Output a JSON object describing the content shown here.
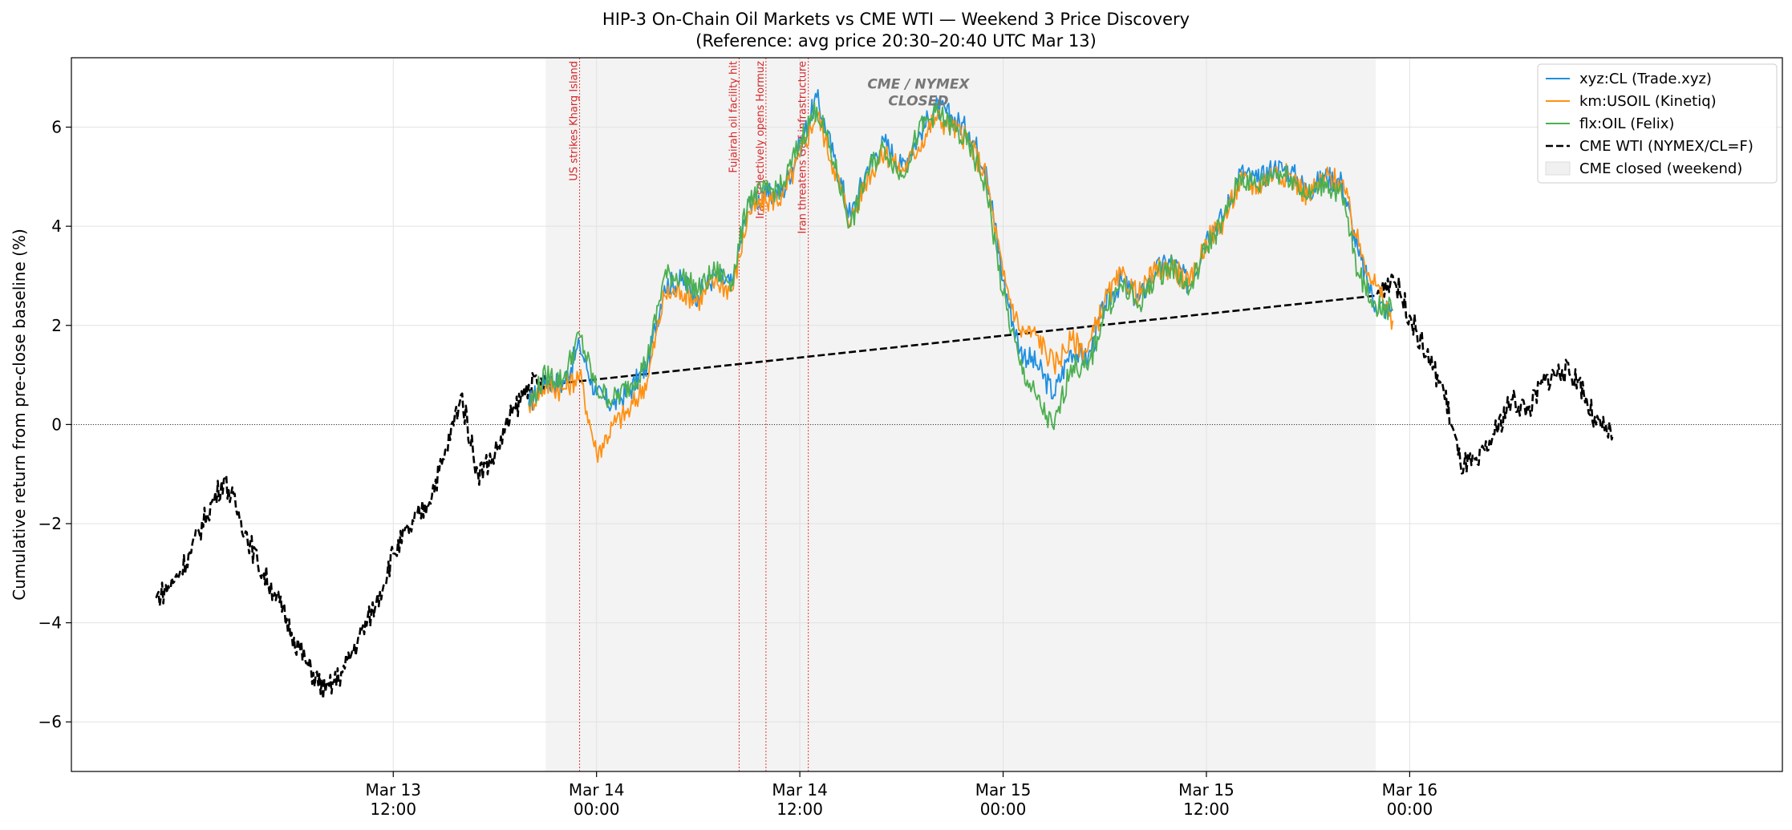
{
  "chart_data": {
    "type": "line",
    "title": "HIP-3 On-Chain Oil Markets vs CME WTI — Weekend 3 Price Discovery",
    "subtitle": "(Reference: avg price 20:30–20:40 UTC Mar 13)",
    "ylabel": "Cumulative return from pre-close baseline (%)",
    "xlabel": "",
    "xlim": [
      "Mar 12 17:00",
      "Mar 16 22:00"
    ],
    "ylim": [
      -7,
      7.4
    ],
    "grid": true,
    "legend_position": "top-right",
    "x_ticks": [
      {
        "line1": "Mar 13",
        "line2": "12:00"
      },
      {
        "line1": "Mar 14",
        "line2": "00:00"
      },
      {
        "line1": "Mar 14",
        "line2": "12:00"
      },
      {
        "line1": "Mar 15",
        "line2": "00:00"
      },
      {
        "line1": "Mar 15",
        "line2": "12:00"
      },
      {
        "line1": "Mar 16",
        "line2": "00:00"
      }
    ],
    "y_ticks": [
      "−6",
      "−4",
      "−2",
      "0",
      "2",
      "4",
      "6"
    ],
    "y_tick_values": [
      -6,
      -4,
      -2,
      0,
      2,
      4,
      6
    ],
    "closed_region": {
      "start": "Mar 13 21:00",
      "end": "Mar 15 22:00",
      "label": "CME / NYMEX\nCLOSED"
    },
    "events": [
      {
        "time": "Mar 13 23:00",
        "label": "US strikes Kharg Island"
      },
      {
        "time": "Mar 14 08:25",
        "label": "Fujairah oil facility hit"
      },
      {
        "time": "Mar 14 10:00",
        "label": "Iran selectively opens Hormuz"
      },
      {
        "time": "Mar 14 12:30",
        "label": "Iran threatens Gulf infrastructure"
      }
    ],
    "series": [
      {
        "name": "xyz:CL (Trade.xyz)",
        "color": "#1f8fe0",
        "style": "solid",
        "x": [
          "Mar 13 20:00",
          "Mar 13 21:00",
          "Mar 13 22:00",
          "Mar 13 23:00",
          "Mar 14 00:00",
          "Mar 14 01:00",
          "Mar 14 02:00",
          "Mar 14 03:00",
          "Mar 14 04:00",
          "Mar 14 05:00",
          "Mar 14 06:00",
          "Mar 14 07:00",
          "Mar 14 08:00",
          "Mar 14 09:00",
          "Mar 14 10:00",
          "Mar 14 11:00",
          "Mar 14 12:00",
          "Mar 14 13:00",
          "Mar 14 14:00",
          "Mar 14 15:00",
          "Mar 14 16:00",
          "Mar 14 17:00",
          "Mar 14 18:00",
          "Mar 14 19:00",
          "Mar 14 20:00",
          "Mar 14 21:00",
          "Mar 14 22:00",
          "Mar 14 23:00",
          "Mar 15 00:00",
          "Mar 15 01:00",
          "Mar 15 02:00",
          "Mar 15 03:00",
          "Mar 15 04:00",
          "Mar 15 05:00",
          "Mar 15 06:00",
          "Mar 15 07:00",
          "Mar 15 08:00",
          "Mar 15 09:00",
          "Mar 15 10:00",
          "Mar 15 11:00",
          "Mar 15 12:00",
          "Mar 15 13:00",
          "Mar 15 14:00",
          "Mar 15 15:00",
          "Mar 15 16:00",
          "Mar 15 17:00",
          "Mar 15 18:00",
          "Mar 15 19:00",
          "Mar 15 20:00",
          "Mar 15 21:00",
          "Mar 15 22:00",
          "Mar 15 23:00"
        ],
        "values": [
          0.4,
          0.9,
          0.8,
          1.6,
          0.6,
          0.4,
          0.7,
          1.2,
          2.8,
          2.9,
          2.6,
          3.0,
          2.8,
          4.5,
          4.6,
          4.7,
          5.6,
          6.6,
          5.4,
          4.2,
          5.2,
          5.7,
          5.2,
          5.8,
          6.4,
          6.2,
          5.9,
          5.2,
          2.9,
          1.5,
          1.2,
          0.6,
          1.5,
          1.3,
          2.4,
          2.9,
          2.5,
          3.1,
          3.3,
          2.8,
          3.8,
          4.2,
          5.1,
          4.9,
          5.2,
          5.1,
          4.7,
          5.0,
          4.9,
          3.4,
          2.4,
          2.3
        ]
      },
      {
        "name": "km:USOIL (Kinetiq)",
        "color": "#ff9112",
        "style": "solid",
        "x": [
          "Mar 13 20:00",
          "Mar 13 21:00",
          "Mar 13 22:00",
          "Mar 13 23:00",
          "Mar 14 00:00",
          "Mar 14 01:00",
          "Mar 14 02:00",
          "Mar 14 03:00",
          "Mar 14 04:00",
          "Mar 14 05:00",
          "Mar 14 06:00",
          "Mar 14 07:00",
          "Mar 14 08:00",
          "Mar 14 09:00",
          "Mar 14 10:00",
          "Mar 14 11:00",
          "Mar 14 12:00",
          "Mar 14 13:00",
          "Mar 14 14:00",
          "Mar 14 15:00",
          "Mar 14 16:00",
          "Mar 14 17:00",
          "Mar 14 18:00",
          "Mar 14 19:00",
          "Mar 14 20:00",
          "Mar 14 21:00",
          "Mar 14 22:00",
          "Mar 14 23:00",
          "Mar 15 00:00",
          "Mar 15 01:00",
          "Mar 15 02:00",
          "Mar 15 03:00",
          "Mar 15 04:00",
          "Mar 15 05:00",
          "Mar 15 06:00",
          "Mar 15 07:00",
          "Mar 15 08:00",
          "Mar 15 09:00",
          "Mar 15 10:00",
          "Mar 15 11:00",
          "Mar 15 12:00",
          "Mar 15 13:00",
          "Mar 15 14:00",
          "Mar 15 15:00",
          "Mar 15 16:00",
          "Mar 15 17:00",
          "Mar 15 18:00",
          "Mar 15 19:00",
          "Mar 15 20:00",
          "Mar 15 21:00",
          "Mar 15 22:00",
          "Mar 15 23:00"
        ],
        "values": [
          0.4,
          0.8,
          0.7,
          1.0,
          -0.6,
          0.0,
          0.3,
          0.9,
          2.6,
          2.7,
          2.5,
          2.9,
          2.7,
          4.3,
          4.5,
          4.6,
          5.4,
          6.3,
          5.2,
          4.1,
          5.0,
          5.5,
          5.1,
          5.6,
          6.2,
          6.0,
          5.7,
          5.0,
          3.0,
          1.9,
          1.8,
          1.2,
          1.7,
          1.5,
          2.5,
          3.0,
          2.6,
          3.1,
          3.2,
          2.8,
          3.7,
          4.1,
          4.9,
          4.8,
          5.1,
          5.0,
          4.6,
          5.0,
          4.9,
          3.6,
          2.8,
          2.1
        ]
      },
      {
        "name": "flx:OIL (Felix)",
        "color": "#4caf50",
        "style": "solid",
        "x": [
          "Mar 13 20:00",
          "Mar 13 21:00",
          "Mar 13 22:00",
          "Mar 13 23:00",
          "Mar 14 00:00",
          "Mar 14 01:00",
          "Mar 14 02:00",
          "Mar 14 03:00",
          "Mar 14 04:00",
          "Mar 14 05:00",
          "Mar 14 06:00",
          "Mar 14 07:00",
          "Mar 14 08:00",
          "Mar 14 09:00",
          "Mar 14 10:00",
          "Mar 14 11:00",
          "Mar 14 12:00",
          "Mar 14 13:00",
          "Mar 14 14:00",
          "Mar 14 15:00",
          "Mar 14 16:00",
          "Mar 14 17:00",
          "Mar 14 18:00",
          "Mar 14 19:00",
          "Mar 14 20:00",
          "Mar 14 21:00",
          "Mar 14 22:00",
          "Mar 14 23:00",
          "Mar 15 00:00",
          "Mar 15 01:00",
          "Mar 15 02:00",
          "Mar 15 03:00",
          "Mar 15 04:00",
          "Mar 15 05:00",
          "Mar 15 06:00",
          "Mar 15 07:00",
          "Mar 15 08:00",
          "Mar 15 09:00",
          "Mar 15 10:00",
          "Mar 15 11:00",
          "Mar 15 12:00",
          "Mar 15 13:00",
          "Mar 15 14:00",
          "Mar 15 15:00",
          "Mar 15 16:00",
          "Mar 15 17:00",
          "Mar 15 18:00",
          "Mar 15 19:00",
          "Mar 15 20:00",
          "Mar 15 21:00",
          "Mar 15 22:00",
          "Mar 15 23:00"
        ],
        "values": [
          0.4,
          1.0,
          0.9,
          1.8,
          0.7,
          0.5,
          0.8,
          1.3,
          3.0,
          3.0,
          2.7,
          3.1,
          2.9,
          4.6,
          4.7,
          4.8,
          5.7,
          6.4,
          5.3,
          4.0,
          5.1,
          5.6,
          5.0,
          5.9,
          6.3,
          6.0,
          5.6,
          4.8,
          2.6,
          1.2,
          0.5,
          -0.1,
          1.2,
          1.1,
          2.3,
          2.8,
          2.4,
          3.0,
          3.2,
          2.7,
          3.6,
          4.1,
          5.0,
          4.8,
          5.1,
          5.0,
          4.6,
          4.9,
          4.6,
          3.0,
          2.4,
          2.3
        ]
      },
      {
        "name": "CME WTI (NYMEX/CL=F)",
        "color": "#000000",
        "style": "dashed",
        "x": [
          "Mar 12 22:00",
          "Mar 12 23:00",
          "Mar 13 00:00",
          "Mar 13 01:00",
          "Mar 13 02:00",
          "Mar 13 03:00",
          "Mar 13 04:00",
          "Mar 13 05:00",
          "Mar 13 06:00",
          "Mar 13 07:00",
          "Mar 13 08:00",
          "Mar 13 09:00",
          "Mar 13 10:00",
          "Mar 13 11:00",
          "Mar 13 12:00",
          "Mar 13 13:00",
          "Mar 13 14:00",
          "Mar 13 15:00",
          "Mar 13 16:00",
          "Mar 13 17:00",
          "Mar 13 18:00",
          "Mar 13 19:00",
          "Mar 13 20:00",
          "Mar 13 21:00",
          "Mar 15 22:00",
          "Mar 15 23:00",
          "Mar 16 00:00",
          "Mar 16 01:00",
          "Mar 16 02:00",
          "Mar 16 03:00",
          "Mar 16 04:00",
          "Mar 16 05:00",
          "Mar 16 06:00",
          "Mar 16 07:00",
          "Mar 16 08:00",
          "Mar 16 09:00",
          "Mar 16 10:00",
          "Mar 16 11:00",
          "Mar 16 12:00",
          "Mar 16 13:00",
          "Mar 16 14:00",
          "Mar 16 15:00",
          "Mar 16 16:00",
          "Mar 16 17:00",
          "Mar 16 18:00",
          "Mar 16 19:00",
          "Mar 16 20:00",
          "Mar 16 21:00",
          "Mar 16 22:00",
          "Mar 16 23:00",
          "Mar 17 00:00",
          "Mar 17 01:00",
          "Mar 17 02:00",
          "Mar 17 03:00",
          "Mar 17 04:00",
          "Mar 17 05:00",
          "Mar 17 06:00"
        ],
        "values": [
          -3.5,
          -3.2,
          -2.6,
          -1.8,
          -1.1,
          -1.9,
          -2.8,
          -3.4,
          -4.2,
          -4.9,
          -5.4,
          -5.0,
          -4.3,
          -3.6,
          -2.6,
          -2.1,
          -1.6,
          -0.7,
          0.6,
          -1.0,
          -0.6,
          0.2,
          0.8,
          0.8,
          2.6,
          3.0,
          2.2,
          1.4,
          0.7,
          -0.8,
          -0.8,
          -0.2,
          0.5,
          0.3,
          0.9,
          1.1,
          0.9,
          0.0,
          -0.2,
          null,
          null,
          null,
          null,
          null,
          null,
          null,
          null,
          null,
          null,
          null,
          null,
          null,
          null,
          null,
          null,
          null,
          null
        ]
      }
    ]
  }
}
